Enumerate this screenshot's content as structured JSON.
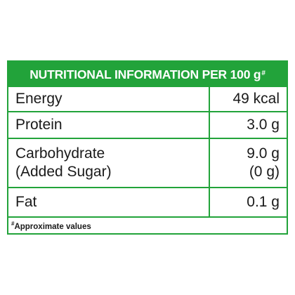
{
  "panel": {
    "title": "NUTRITIONAL INFORMATION PER 100 g",
    "title_mark": "#",
    "border_color": "#22a33a",
    "header_color": "#22a33a"
  },
  "rows": [
    {
      "label": "Energy",
      "value": "49 kcal"
    },
    {
      "label": "Protein",
      "value": "3.0 g"
    },
    {
      "label": "Carbohydrate",
      "sublabel": "(Added Sugar)",
      "value": "9.0 g",
      "subvalue": "(0 g)"
    },
    {
      "label": "Fat",
      "value": "0.1 g"
    }
  ],
  "footnote": {
    "mark": "#",
    "text": "Approximate values"
  }
}
